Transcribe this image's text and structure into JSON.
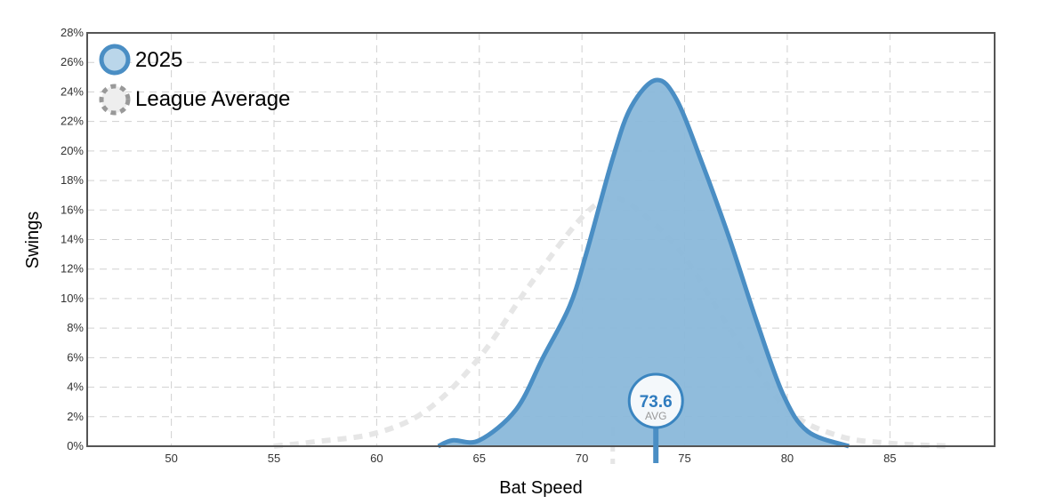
{
  "chart_data": {
    "type": "area",
    "xlabel": "Bat Speed",
    "ylabel": "Swings",
    "xlim": [
      45.9,
      90.1
    ],
    "ylim": [
      0,
      28
    ],
    "x_ticks": [
      50,
      55,
      60,
      65,
      70,
      75,
      80,
      85
    ],
    "y_ticks": [
      "0%",
      "2%",
      "4%",
      "6%",
      "8%",
      "10%",
      "12%",
      "14%",
      "16%",
      "18%",
      "20%",
      "22%",
      "24%",
      "26%",
      "28%"
    ],
    "grid": true,
    "legend_placement": "top-left",
    "series": [
      {
        "name": "2025",
        "color": "#4a8ec4",
        "fill": "#8ab8da",
        "points": [
          [
            63,
            0
          ],
          [
            63.7,
            0.4
          ],
          [
            65,
            0.4
          ],
          [
            66.8,
            2.5
          ],
          [
            68.1,
            6
          ],
          [
            69.4,
            9.5
          ],
          [
            70.2,
            13
          ],
          [
            71.5,
            19.5
          ],
          [
            72.4,
            23
          ],
          [
            73.6,
            24.8
          ],
          [
            74.6,
            23.5
          ],
          [
            75.9,
            19
          ],
          [
            77.2,
            14
          ],
          [
            78.5,
            8.5
          ],
          [
            79.8,
            3.5
          ],
          [
            81,
            1
          ],
          [
            83,
            0
          ]
        ]
      },
      {
        "name": "League Average",
        "color": "#e6e6e6",
        "points": [
          [
            55,
            0
          ],
          [
            57,
            0.3
          ],
          [
            60,
            0.9
          ],
          [
            62.5,
            2.5
          ],
          [
            65,
            6
          ],
          [
            67.5,
            11
          ],
          [
            70,
            15.5
          ],
          [
            71.5,
            16.8
          ],
          [
            73,
            15.7
          ],
          [
            75,
            12.8
          ],
          [
            77.5,
            7.3
          ],
          [
            80,
            2.5
          ],
          [
            82.5,
            0.7
          ],
          [
            85,
            0.2
          ],
          [
            88,
            0
          ]
        ]
      }
    ],
    "avg_marker": {
      "value": "73.6",
      "label": "AVG",
      "x": 73.6
    },
    "league_avg_x": 71.5
  }
}
